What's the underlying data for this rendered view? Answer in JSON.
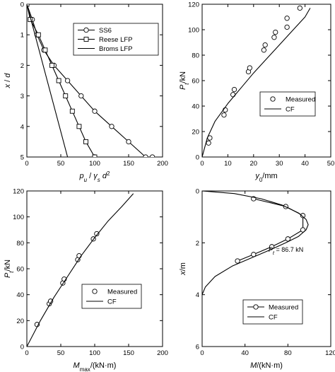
{
  "chart_data": [
    {
      "type": "line",
      "panel": "top-left",
      "xlabel": "p_u / γ_s d²",
      "ylabel": "x / d",
      "xlim": [
        0,
        200
      ],
      "ylim": [
        0,
        5
      ],
      "y_inverted": true,
      "xticks": [
        "0",
        "50",
        "100",
        "150",
        "200"
      ],
      "yticks": [
        "0",
        "1",
        "2",
        "3",
        "4",
        "5"
      ],
      "legend_position": "top-right",
      "series": [
        {
          "name": "SS6",
          "marker": "circle",
          "x": [
            0,
            8,
            15,
            25,
            40,
            60,
            80,
            100,
            125,
            150,
            175,
            185
          ],
          "y": [
            0,
            0.5,
            1,
            1.5,
            2,
            2.5,
            3,
            3.5,
            4,
            4.5,
            5,
            5
          ]
        },
        {
          "name": "Reese LFP",
          "marker": "square",
          "x": [
            0,
            5,
            17,
            27,
            37,
            47,
            57,
            67,
            77,
            87,
            100
          ],
          "y": [
            0,
            0.5,
            1,
            1.5,
            2,
            2.5,
            3,
            3.5,
            4,
            4.5,
            5
          ]
        },
        {
          "name": "Broms LFP",
          "marker": "none",
          "x": [
            0,
            60
          ],
          "y": [
            0,
            5
          ]
        }
      ]
    },
    {
      "type": "scatter",
      "panel": "top-right",
      "xlabel": "y_0/mm",
      "ylabel": "P_t/kN",
      "xlim": [
        0,
        50
      ],
      "ylim": [
        0,
        120
      ],
      "xticks": [
        "0",
        "10",
        "20",
        "30",
        "40",
        "50"
      ],
      "yticks": [
        "0",
        "20",
        "40",
        "60",
        "80",
        "100",
        "120"
      ],
      "legend_position": "center-right",
      "series": [
        {
          "name": "Measured",
          "marker": "circle",
          "x": [
            2.5,
            3,
            8.5,
            9,
            12,
            12.5,
            18,
            18.5,
            24,
            24.5,
            28,
            28.5,
            33,
            33,
            38
          ],
          "y": [
            11,
            15,
            33,
            37,
            49,
            53,
            67,
            70,
            84,
            88,
            94,
            98,
            102,
            109,
            117
          ]
        },
        {
          "name": "CF",
          "marker": "none",
          "x": [
            0,
            2,
            5,
            10,
            15,
            20,
            25,
            30,
            35,
            40,
            42
          ],
          "y": [
            0,
            15,
            28,
            42,
            54,
            66,
            77,
            88,
            99,
            110,
            117
          ]
        }
      ]
    },
    {
      "type": "scatter",
      "panel": "bottom-left",
      "xlabel": "M_max/(kN·m)",
      "ylabel": "P_t/kN",
      "xlim": [
        0,
        200
      ],
      "ylim": [
        0,
        120
      ],
      "xticks": [
        "0",
        "50",
        "100",
        "150",
        "200"
      ],
      "yticks": [
        "0",
        "20",
        "40",
        "60",
        "80",
        "100",
        "120"
      ],
      "legend_position": "bottom-right",
      "series": [
        {
          "name": "Measured",
          "marker": "circle",
          "x": [
            15,
            33,
            35,
            53,
            55,
            75,
            77,
            98,
            103
          ],
          "y": [
            17,
            33,
            35,
            49,
            52,
            67,
            70,
            83,
            87
          ]
        },
        {
          "name": "CF",
          "marker": "none",
          "x": [
            0,
            20,
            40,
            60,
            80,
            100,
            120,
            140,
            157
          ],
          "y": [
            0,
            20,
            38,
            54,
            70,
            84,
            97,
            108,
            118
          ]
        }
      ]
    },
    {
      "type": "line",
      "panel": "bottom-right",
      "xlabel": "M/(kN·m)",
      "ylabel": "x/m",
      "xlim": [
        0,
        120
      ],
      "ylim": [
        0,
        6
      ],
      "y_inverted": true,
      "xticks": [
        "0",
        "40",
        "80",
        "120"
      ],
      "yticks": [
        "0",
        "2",
        "4",
        "6"
      ],
      "legend_position": "bottom-right",
      "annotations": [
        {
          "text": "P_t = 86.7 kN",
          "x": 62,
          "y": 2.35
        }
      ],
      "series": [
        {
          "name": "Measured",
          "marker": "circle",
          "x": [
            48,
            78,
            94,
            94,
            80,
            65,
            48,
            33
          ],
          "y": [
            0.3,
            0.6,
            0.95,
            1.5,
            1.85,
            2.15,
            2.45,
            2.7
          ]
        },
        {
          "name": "CF",
          "marker": "none",
          "x": [
            0,
            30,
            55,
            75,
            90,
            97,
            99,
            97,
            90,
            78,
            62,
            45,
            28,
            12,
            3,
            0
          ],
          "y": [
            0,
            0.1,
            0.3,
            0.55,
            0.85,
            1.1,
            1.3,
            1.5,
            1.75,
            2.0,
            2.3,
            2.6,
            2.9,
            3.3,
            3.7,
            4.0
          ]
        }
      ]
    }
  ]
}
